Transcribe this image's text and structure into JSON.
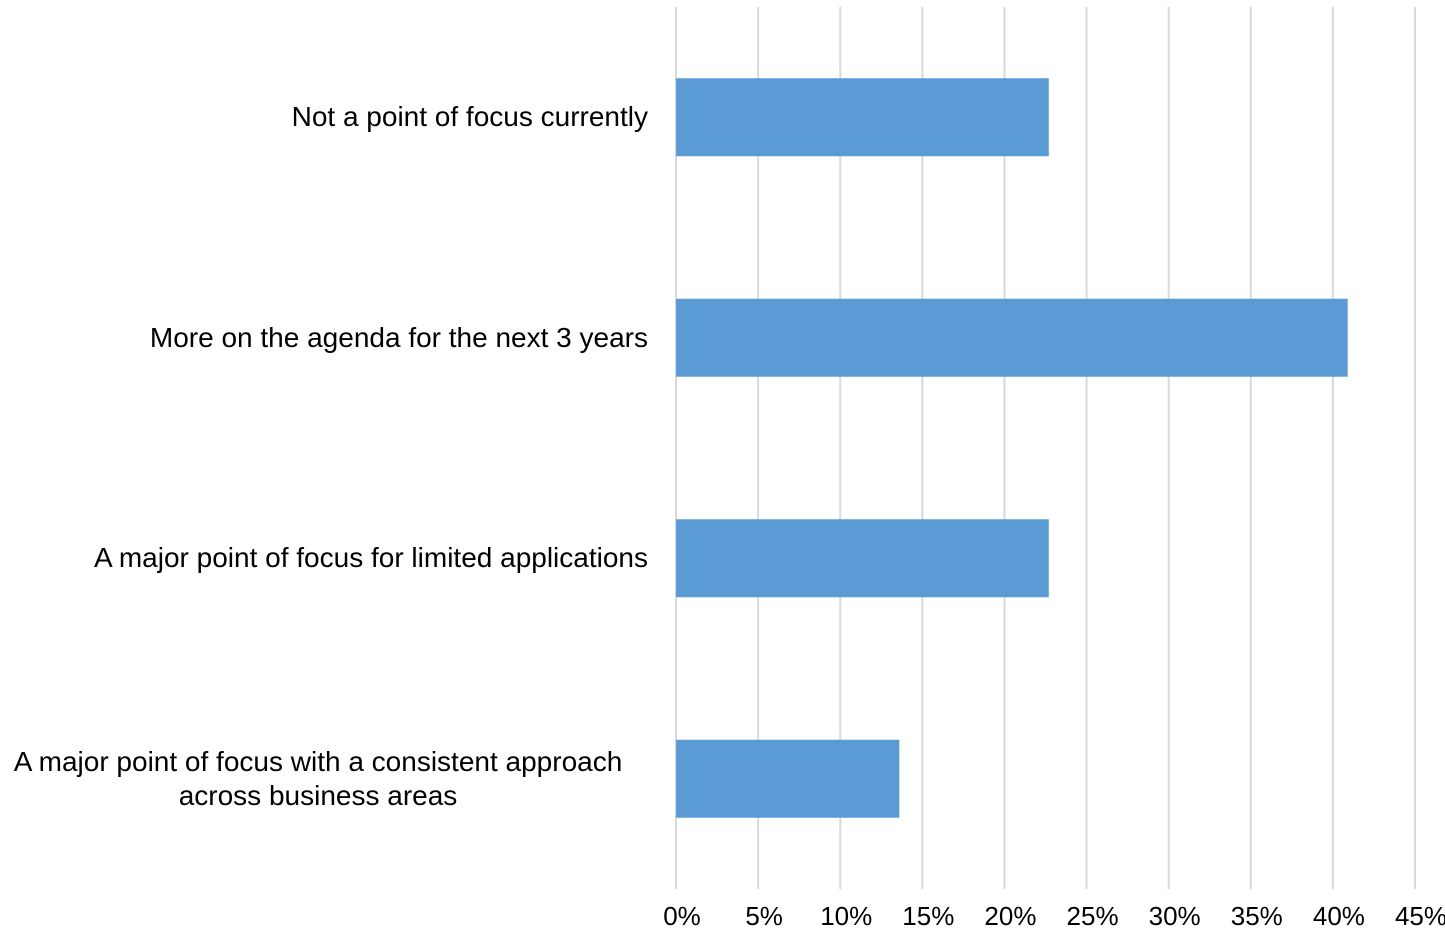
{
  "chart_data": {
    "type": "bar",
    "orientation": "horizontal",
    "categories": [
      "Not a point of focus currently",
      "More on the agenda for the next 3 years",
      "A major point of focus for limited applications",
      "A major point of focus with a consistent approach across business areas"
    ],
    "values": [
      22.7,
      40.9,
      22.7,
      13.6
    ],
    "color": "#5b9bd5",
    "xlim": [
      0,
      45
    ],
    "xticks": [
      {
        "value": 0,
        "label": "0%"
      },
      {
        "value": 5,
        "label": "5%"
      },
      {
        "value": 10,
        "label": "10%"
      },
      {
        "value": 15,
        "label": "15%"
      },
      {
        "value": 20,
        "label": "20%"
      },
      {
        "value": 25,
        "label": "25%"
      },
      {
        "value": 30,
        "label": "30%"
      },
      {
        "value": 35,
        "label": "35%"
      },
      {
        "value": 40,
        "label": "40%"
      },
      {
        "value": 45,
        "label": "45%"
      }
    ],
    "grid": true
  }
}
